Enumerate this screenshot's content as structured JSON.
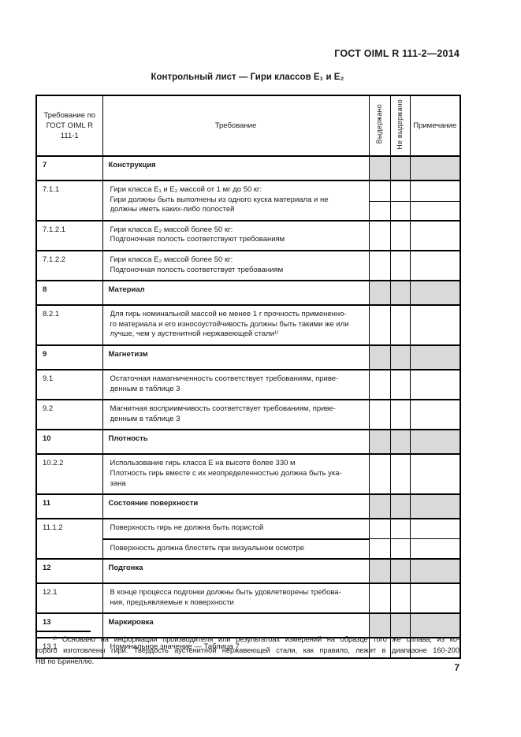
{
  "header": {
    "doc_code": "ГОСТ OIML R 111-2—2014",
    "title": "Контрольный лист — Гири классов Е₁ и Е₂"
  },
  "table": {
    "columns": {
      "col1": "Требование по\nГОСТ OIML R\n111-1",
      "col2": "Требование",
      "col3": "Выдержано",
      "col4": "Не выдержано",
      "col5": "Примечание"
    },
    "rows": [
      {
        "type": "section",
        "num": "7",
        "title": "Конструкция"
      },
      {
        "type": "item",
        "num": "7.1.1",
        "check_subrows": 2,
        "lines": [
          "Гири класса Е₁ и Е₂ массой от 1 мг до 50 кг:",
          "Гири должны быть выполнены из одного куска материала и не",
          "должны иметь каких-либо полостей"
        ]
      },
      {
        "type": "item",
        "num": "7.1.2.1",
        "lines": [
          "Гири класса Е₂ массой более 50 кг:",
          "Подгоночная полость соответствуют требованиям"
        ]
      },
      {
        "type": "item",
        "num": "7.1.2.2",
        "lines": [
          "Гири класса Е₂ массой более 50 кг:",
          "Подгоночная полость соответствует требованиям"
        ]
      },
      {
        "type": "section",
        "num": "8",
        "title": "Материал"
      },
      {
        "type": "item",
        "num": "8.2.1",
        "lines": [
          "Для гирь номинальной массой не менее 1 г прочность примененно-",
          "го материала и его износоустойчивость должны быть такими же или",
          "лучше, чем у аустенитной нержавеющей стали¹⁾"
        ]
      },
      {
        "type": "section",
        "num": "9",
        "title": "Магнетизм"
      },
      {
        "type": "item",
        "num": "9.1",
        "lines": [
          "Остаточная намагниченность соответствует требованиям, приве-",
          "денным в таблице 3"
        ]
      },
      {
        "type": "item",
        "num": "9.2",
        "lines": [
          "Магнитная восприимчивость соответствует требованиям, приве-",
          "денным в таблице 3"
        ]
      },
      {
        "type": "section",
        "num": "10",
        "title": "Плотность"
      },
      {
        "type": "item",
        "num": "10.2.2",
        "lines": [
          "Использование гирь класса Е на высоте более 330 м",
          "Плотность гирь вместе с их неопределенностью должна быть ука-",
          "зана"
        ]
      },
      {
        "type": "section",
        "num": "11",
        "title": "Состояние поверхности"
      },
      {
        "type": "item",
        "num": "11.1.2",
        "subitems": [
          [
            "Поверхность гирь не должна быть пористой"
          ],
          [
            "Поверхность должна блестеть при визуальном осмотре"
          ]
        ]
      },
      {
        "type": "section",
        "num": "12",
        "title": "Подгонка"
      },
      {
        "type": "item",
        "num": "12.1",
        "lines": [
          "В конце процесса подгонки должны быть удовлетворены требова-",
          "ния, предъявляемые к поверхности"
        ]
      },
      {
        "type": "section",
        "num": "13",
        "title": "Маркировка"
      },
      {
        "type": "item",
        "num": "13.1",
        "lines": [
          "Номинальное значение — Таблица 7"
        ]
      }
    ]
  },
  "footnote": {
    "lines": [
      "¹⁾ Основано на информации производителя или результатоах измерений на образце того же сплава, из ко-",
      "торого изготовлены гири. Твердость аустенитной нержавеющей стали, как правило, лежит в диапазоне 160-200",
      "НВ по Бринеллю."
    ]
  },
  "footer": {
    "page_number": "7"
  }
}
